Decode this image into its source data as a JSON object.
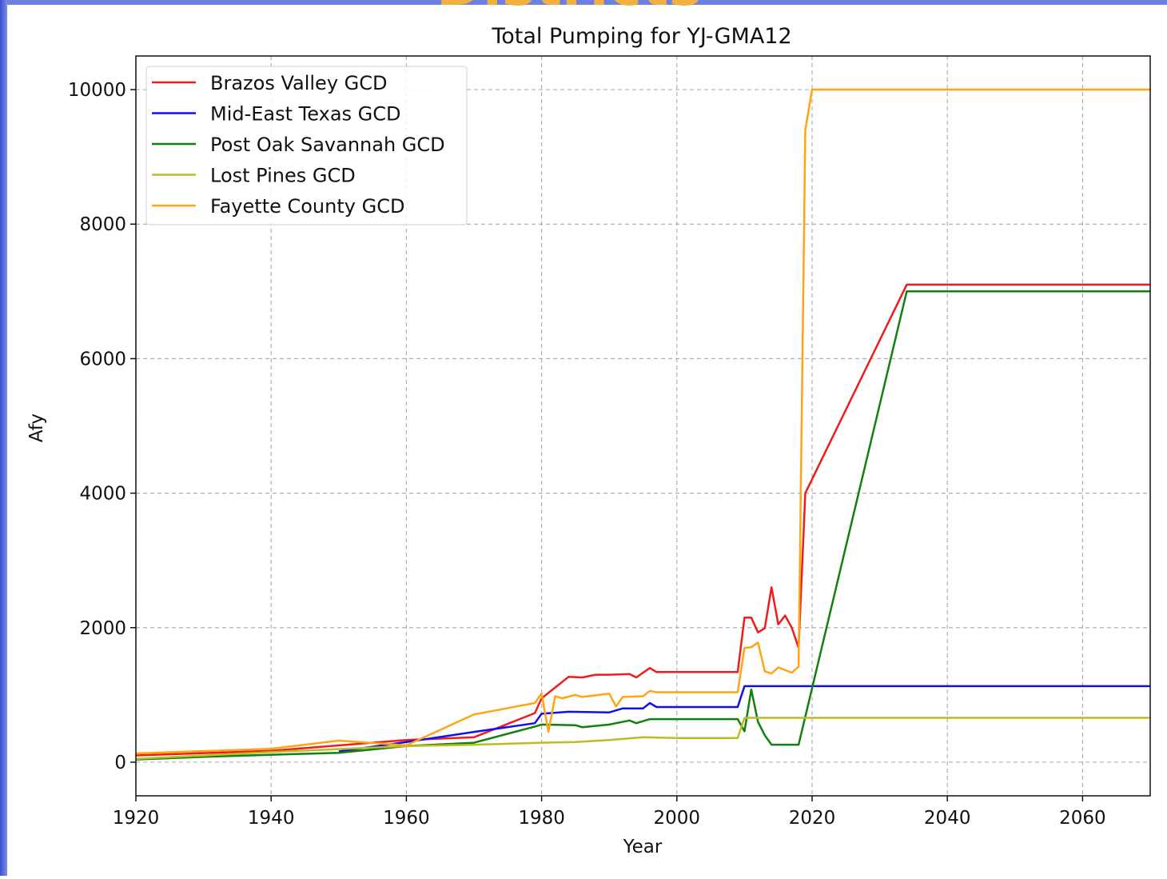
{
  "slide_title": "Districts",
  "chart_data": {
    "type": "line",
    "title": "Total Pumping for YJ-GMA12",
    "xlabel": "Year",
    "ylabel": "Afy",
    "xlim": [
      1920,
      2070
    ],
    "ylim": [
      -500,
      10500
    ],
    "xticks": [
      1920,
      1940,
      1960,
      1980,
      2000,
      2020,
      2040,
      2060
    ],
    "yticks": [
      0,
      2000,
      4000,
      6000,
      8000,
      10000
    ],
    "grid": true,
    "legend": "upper left",
    "series": [
      {
        "name": "Brazos Valley GCD",
        "color": "#ee1c1c",
        "x": [
          1920,
          1940,
          1960,
          1970,
          1979,
          1980,
          1984,
          1986,
          1988,
          1990,
          1993,
          1994,
          1996,
          1997,
          2009,
          2010,
          2011,
          2012,
          2013,
          2014,
          2015,
          2016,
          2017,
          2018,
          2019,
          2034,
          2070
        ],
        "values": [
          100,
          170,
          330,
          370,
          730,
          950,
          1270,
          1260,
          1300,
          1300,
          1310,
          1260,
          1400,
          1340,
          1340,
          2150,
          2150,
          1930,
          1990,
          2600,
          2050,
          2180,
          2000,
          1700,
          4000,
          7100,
          7100
        ]
      },
      {
        "name": "Mid-East Texas GCD",
        "color": "#1010ee",
        "x": [
          1950,
          1960,
          1970,
          1979,
          1980,
          1984,
          1990,
          1992,
          1995,
          1996,
          1997,
          2009,
          2010,
          2070
        ],
        "values": [
          160,
          300,
          450,
          580,
          720,
          750,
          740,
          800,
          800,
          880,
          820,
          820,
          1130,
          1130
        ]
      },
      {
        "name": "Post Oak Savannah GCD",
        "color": "#108010",
        "x": [
          1920,
          1930,
          1950,
          1960,
          1970,
          1979,
          1980,
          1985,
          1986,
          1990,
          1993,
          1994,
          1996,
          2009,
          2010,
          2011,
          2012,
          2013,
          2014,
          2018,
          2034,
          2070
        ],
        "values": [
          40,
          80,
          140,
          240,
          290,
          530,
          560,
          550,
          520,
          560,
          620,
          580,
          640,
          640,
          460,
          1080,
          600,
          400,
          260,
          260,
          7000,
          7000
        ]
      },
      {
        "name": "Lost Pines GCD",
        "color": "#bcbd22",
        "x": [
          1920,
          1940,
          1960,
          1970,
          1980,
          1985,
          1990,
          1995,
          2000,
          2009,
          2010,
          2070
        ],
        "values": [
          50,
          150,
          240,
          260,
          290,
          300,
          330,
          370,
          360,
          360,
          660,
          660
        ]
      },
      {
        "name": "Fayette County GCD",
        "color": "#ffa514",
        "x": [
          1920,
          1940,
          1950,
          1960,
          1970,
          1979,
          1980,
          1981,
          1982,
          1983,
          1985,
          1986,
          1990,
          1991,
          1992,
          1995,
          1996,
          1997,
          2009,
          2010,
          2011,
          2012,
          2013,
          2014,
          2015,
          2017,
          2018,
          2019,
          2020,
          2070
        ],
        "values": [
          130,
          200,
          320,
          250,
          710,
          880,
          1020,
          450,
          980,
          950,
          1000,
          970,
          1020,
          830,
          970,
          980,
          1060,
          1040,
          1040,
          1700,
          1710,
          1780,
          1350,
          1320,
          1410,
          1330,
          1420,
          9400,
          10000,
          10000
        ]
      }
    ]
  }
}
